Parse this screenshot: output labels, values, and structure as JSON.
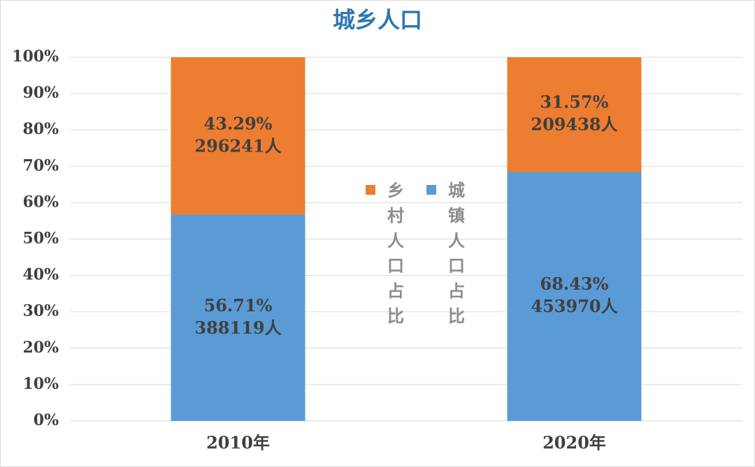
{
  "chart_data": {
    "type": "stacked_bar",
    "title": "城乡人口",
    "categories": [
      "2010年",
      "2020年"
    ],
    "series": [
      {
        "name": "城镇人口占比",
        "color": "#5b9bd5",
        "values": [
          56.71,
          68.43
        ],
        "value_labels": [
          "56.71%",
          "68.43%"
        ],
        "count_labels": [
          "388119人",
          "453970人"
        ]
      },
      {
        "name": "乡村人口占比",
        "color": "#ed7d31",
        "values": [
          43.29,
          31.57
        ],
        "value_labels": [
          "43.29%",
          "31.57%"
        ],
        "count_labels": [
          "296241人",
          "209438人"
        ]
      }
    ],
    "ylim": [
      0,
      100
    ],
    "yticks": [
      {
        "value": 0,
        "label": "0%"
      },
      {
        "value": 10,
        "label": "10%"
      },
      {
        "value": 20,
        "label": "20%"
      },
      {
        "value": 30,
        "label": "30%"
      },
      {
        "value": 40,
        "label": "40%"
      },
      {
        "value": 50,
        "label": "50%"
      },
      {
        "value": 60,
        "label": "60%"
      },
      {
        "value": 70,
        "label": "70%"
      },
      {
        "value": 80,
        "label": "80%"
      },
      {
        "value": 90,
        "label": "90%"
      },
      {
        "value": 100,
        "label": "100%"
      }
    ],
    "grid": true,
    "legend": "center"
  }
}
